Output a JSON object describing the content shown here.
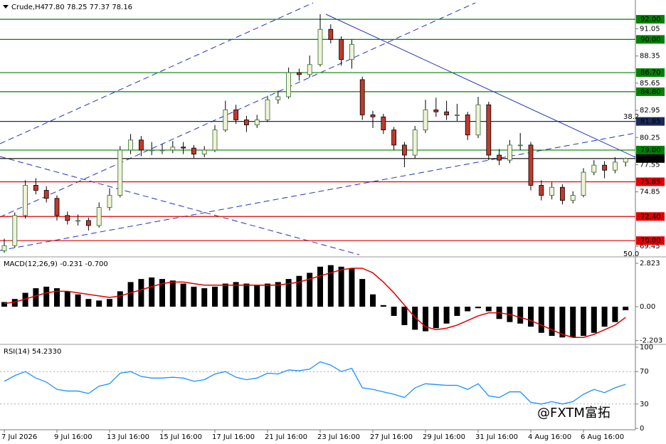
{
  "chart_data": [
    {
      "type": "candlestick",
      "symbol": "Crude,H4",
      "ohlc_text": "77.80 78.25 77.37 78.16",
      "categories": [
        "7 Jul 2026",
        null,
        null,
        null,
        null,
        "9 Jul 16:00",
        null,
        null,
        null,
        null,
        "13 Jul 16:00",
        null,
        null,
        null,
        null,
        "15 Jul 16:00",
        null,
        null,
        null,
        null,
        "17 Jul 16:00",
        null,
        null,
        null,
        null,
        "21 Jul 16:00",
        null,
        null,
        null,
        null,
        "23 Jul 16:00",
        null,
        null,
        null,
        null,
        "27 Jul 16:00",
        null,
        null,
        null,
        null,
        "29 Jul 16:00",
        null,
        null,
        null,
        null,
        "31 Jul 16:00",
        null,
        null,
        null,
        null,
        "4 Aug 16:00",
        null,
        null,
        null,
        null,
        "6 Aug 16:00",
        null,
        null,
        null,
        null
      ],
      "candles": [
        [
          69.0,
          70.2,
          68.8,
          69.5
        ],
        [
          69.5,
          72.8,
          69.3,
          72.5
        ],
        [
          72.5,
          76.0,
          72.2,
          75.5
        ],
        [
          75.5,
          76.2,
          74.6,
          75.0
        ],
        [
          75.0,
          75.4,
          73.8,
          74.2
        ],
        [
          74.2,
          74.5,
          72.0,
          72.5
        ],
        [
          72.5,
          72.9,
          71.6,
          72.0
        ],
        [
          72.0,
          72.6,
          71.5,
          72.0
        ],
        [
          72.0,
          72.3,
          71.0,
          71.5
        ],
        [
          71.5,
          73.8,
          71.3,
          73.3
        ],
        [
          73.3,
          75.2,
          73.0,
          74.5
        ],
        [
          74.5,
          79.4,
          74.3,
          79.0
        ],
        [
          79.0,
          80.6,
          78.6,
          80.0
        ],
        [
          80.0,
          80.4,
          78.4,
          79.0
        ],
        [
          79.0,
          79.8,
          78.5,
          79.0
        ],
        [
          79.0,
          79.6,
          78.6,
          79.0
        ],
        [
          79.0,
          79.9,
          78.7,
          79.3
        ],
        [
          79.3,
          79.8,
          78.6,
          79.2
        ],
        [
          79.2,
          79.5,
          78.2,
          78.6
        ],
        [
          78.6,
          79.4,
          78.3,
          79.0
        ],
        [
          79.0,
          81.5,
          78.8,
          81.0
        ],
        [
          81.0,
          83.9,
          80.8,
          83.0
        ],
        [
          83.0,
          83.5,
          81.6,
          82.0
        ],
        [
          82.0,
          82.4,
          80.8,
          81.5
        ],
        [
          81.5,
          82.5,
          81.2,
          82.0
        ],
        [
          82.0,
          84.4,
          81.8,
          84.0
        ],
        [
          84.0,
          84.9,
          83.6,
          84.3
        ],
        [
          84.3,
          87.2,
          84.1,
          86.7
        ],
        [
          86.7,
          87.1,
          85.9,
          86.5
        ],
        [
          86.5,
          88.4,
          86.2,
          87.5
        ],
        [
          87.5,
          92.5,
          87.3,
          91.0
        ],
        [
          91.0,
          91.5,
          89.6,
          90.0
        ],
        [
          90.0,
          90.3,
          87.4,
          88.0
        ],
        [
          88.0,
          90.0,
          87.1,
          89.5
        ],
        [
          86.0,
          86.3,
          82.0,
          82.5
        ],
        [
          82.5,
          82.9,
          81.2,
          82.3
        ],
        [
          82.3,
          82.6,
          80.6,
          81.0
        ],
        [
          81.0,
          81.3,
          79.0,
          79.5
        ],
        [
          79.5,
          79.8,
          77.3,
          78.5
        ],
        [
          78.5,
          81.4,
          78.2,
          81.0
        ],
        [
          81.0,
          84.0,
          80.7,
          83.0
        ],
        [
          83.0,
          84.2,
          82.3,
          82.8
        ],
        [
          82.8,
          83.9,
          82.0,
          82.5
        ],
        [
          82.5,
          83.6,
          81.9,
          82.5
        ],
        [
          82.5,
          82.8,
          80.0,
          80.5
        ],
        [
          80.5,
          84.3,
          80.2,
          83.5
        ],
        [
          83.5,
          83.8,
          78.0,
          78.5
        ],
        [
          78.5,
          79.1,
          77.5,
          78.0
        ],
        [
          78.0,
          80.0,
          77.7,
          79.5
        ],
        [
          79.5,
          80.7,
          79.0,
          79.5
        ],
        [
          79.5,
          79.8,
          75.0,
          75.5
        ],
        [
          75.5,
          76.0,
          74.0,
          74.5
        ],
        [
          74.5,
          75.8,
          74.1,
          75.3
        ],
        [
          75.3,
          75.6,
          73.6,
          74.0
        ],
        [
          74.0,
          74.9,
          73.7,
          74.5
        ],
        [
          74.5,
          77.2,
          74.3,
          76.8
        ],
        [
          76.8,
          78.0,
          76.5,
          77.5
        ],
        [
          77.5,
          77.9,
          76.2,
          77.0
        ],
        [
          77.0,
          78.3,
          76.7,
          77.8
        ],
        [
          77.8,
          78.25,
          77.37,
          78.16
        ]
      ],
      "bull_color": "#f2f2d8",
      "bull_edge": "#2e6b2e",
      "bear_color": "#c0392b",
      "ylim": [
        68.6,
        93.35
      ],
      "yticks": [
        91.05,
        88.35,
        85.65,
        82.95,
        80.25,
        77.55,
        74.85,
        69.45
      ],
      "levels": [
        {
          "value": 92,
          "label": "92.00",
          "color": "#008000"
        },
        {
          "value": 90,
          "label": "90.00",
          "color": "#008000"
        },
        {
          "value": 86.7,
          "label": "86.70",
          "color": "#008000"
        },
        {
          "value": 84.8,
          "label": "84.80",
          "color": "#008000"
        },
        {
          "value": 81.85,
          "label": "81.85",
          "color": "#1a2a5a"
        },
        {
          "value": 79,
          "label": "79.00",
          "color": "#008000"
        },
        {
          "value": 78.16,
          "label": "78.16",
          "color": "#000000"
        },
        {
          "value": 75.85,
          "label": "75.85",
          "color": "#e00000"
        },
        {
          "value": 72.4,
          "label": "72.40",
          "color": "#e00000"
        },
        {
          "value": 70,
          "label": "70.00",
          "color": "#e00000"
        }
      ],
      "annotations": [
        "38.2",
        "50.0"
      ],
      "watermark": "@FXTM富拓"
    },
    {
      "type": "macd",
      "title": "MACD(12,26,9) -0.231 -0.700",
      "histogram": [
        0.3,
        0.5,
        0.9,
        1.2,
        1.3,
        1.2,
        1.0,
        0.8,
        0.5,
        0.4,
        0.5,
        1.0,
        1.6,
        1.8,
        1.9,
        1.8,
        1.7,
        1.5,
        1.3,
        1.2,
        1.3,
        1.5,
        1.6,
        1.5,
        1.4,
        1.5,
        1.6,
        1.8,
        2.0,
        2.2,
        2.6,
        2.7,
        2.6,
        2.5,
        1.8,
        0.8,
        0.1,
        -0.6,
        -1.2,
        -1.5,
        -1.6,
        -1.4,
        -1.1,
        -0.6,
        -0.3,
        -0.1,
        -0.3,
        -0.8,
        -1.0,
        -1.1,
        -1.3,
        -1.7,
        -1.9,
        -2.0,
        -2.0,
        -1.9,
        -1.7,
        -1.3,
        -1.0,
        -0.231
      ],
      "signal": [
        0.2,
        0.3,
        0.5,
        0.7,
        0.9,
        1.0,
        1.0,
        0.9,
        0.8,
        0.7,
        0.6,
        0.7,
        0.9,
        1.1,
        1.3,
        1.5,
        1.6,
        1.6,
        1.5,
        1.4,
        1.4,
        1.4,
        1.4,
        1.4,
        1.4,
        1.4,
        1.4,
        1.5,
        1.6,
        1.8,
        2.0,
        2.2,
        2.4,
        2.5,
        2.5,
        2.2,
        1.6,
        0.9,
        0.1,
        -0.7,
        -1.3,
        -1.5,
        -1.4,
        -1.2,
        -0.9,
        -0.6,
        -0.4,
        -0.4,
        -0.5,
        -0.7,
        -0.9,
        -1.2,
        -1.5,
        -1.8,
        -2.0,
        -2.0,
        -1.8,
        -1.5,
        -1.2,
        -0.7
      ],
      "hist_color": "#000000",
      "signal_color": "#e00000",
      "ylim": [
        -2.36,
        3.1
      ],
      "yticks": [
        2.823,
        {
          "value": 0,
          "label": "0.00"
        },
        -2.203
      ]
    },
    {
      "type": "line",
      "title": "RSI(14) 54.2330",
      "values": [
        58,
        65,
        70,
        62,
        57,
        48,
        46,
        46,
        43,
        52,
        55,
        68,
        70,
        64,
        62,
        62,
        63,
        62,
        58,
        60,
        67,
        70,
        63,
        60,
        62,
        68,
        67,
        72,
        71,
        73,
        82,
        78,
        70,
        74,
        50,
        48,
        45,
        42,
        38,
        50,
        55,
        54,
        53,
        53,
        48,
        55,
        40,
        38,
        45,
        45,
        32,
        30,
        33,
        30,
        33,
        42,
        48,
        44,
        50,
        54.233
      ],
      "color": "#1e90ff",
      "ylim": [
        0,
        100
      ],
      "yticks": [
        100,
        70,
        30,
        0
      ],
      "levels": [
        70,
        30
      ]
    }
  ]
}
